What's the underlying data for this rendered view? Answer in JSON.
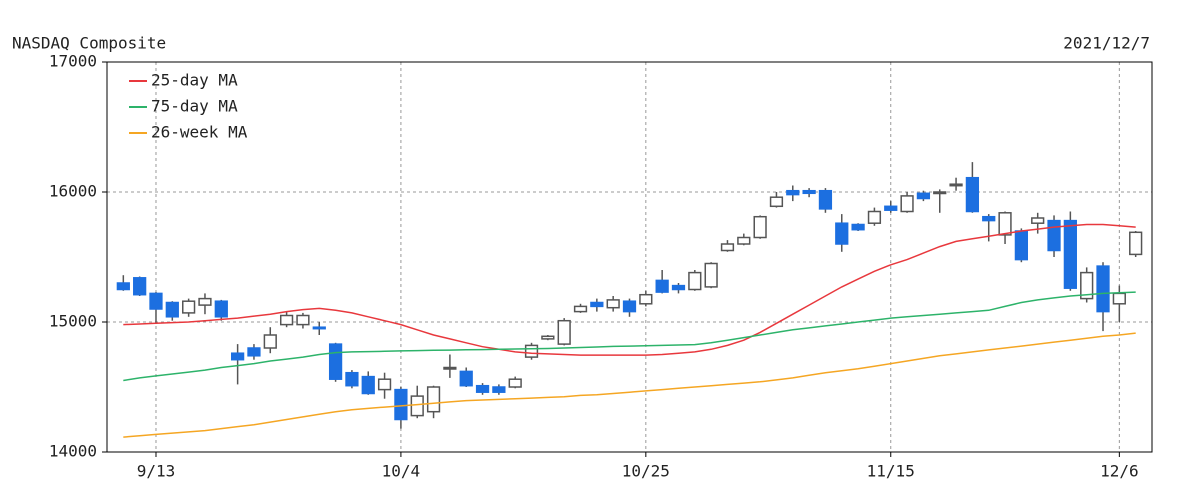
{
  "chart_data": {
    "type": "candlestick",
    "title": "NASDAQ Composite",
    "date": "2021/12/7",
    "categories": [
      null,
      null,
      "9/13",
      null,
      null,
      null,
      null,
      null,
      null,
      null,
      null,
      null,
      null,
      null,
      null,
      null,
      null,
      "10/4",
      null,
      null,
      null,
      null,
      null,
      null,
      null,
      null,
      null,
      null,
      null,
      null,
      null,
      null,
      "10/25",
      null,
      null,
      null,
      null,
      null,
      null,
      null,
      null,
      null,
      null,
      null,
      null,
      null,
      null,
      "11/15",
      null,
      null,
      null,
      null,
      null,
      null,
      null,
      null,
      null,
      null,
      null,
      null,
      null,
      "12/6",
      null
    ],
    "open": [
      15300,
      15340,
      15220,
      15150,
      15070,
      15130,
      15160,
      14760,
      14800,
      14800,
      14980,
      14980,
      14960,
      14830,
      14610,
      14580,
      14480,
      14480,
      14280,
      14310,
      14640,
      14620,
      14510,
      14500,
      14500,
      14730,
      14870,
      14830,
      15080,
      15150,
      15110,
      15160,
      15140,
      15320,
      15280,
      15250,
      15270,
      15550,
      15600,
      15650,
      15890,
      16010,
      16010,
      16010,
      15760,
      15750,
      15760,
      15890,
      15850,
      15990,
      15990,
      16060,
      16110,
      15810,
      15670,
      15700,
      15760,
      15780,
      15780,
      15180,
      15430,
      15140,
      15520
    ],
    "high": [
      15360,
      15350,
      15230,
      15160,
      15180,
      15220,
      15170,
      14830,
      14830,
      14960,
      15080,
      15070,
      15000,
      14840,
      14630,
      14620,
      14610,
      14500,
      14510,
      14510,
      14750,
      14650,
      14530,
      14520,
      14580,
      14840,
      14900,
      15030,
      15140,
      15180,
      15200,
      15180,
      15240,
      15400,
      15300,
      15400,
      15460,
      15630,
      15680,
      15820,
      16000,
      16050,
      16030,
      16030,
      15830,
      15760,
      15880,
      15930,
      16000,
      16010,
      16020,
      16110,
      16230,
      15830,
      15850,
      15720,
      15840,
      15820,
      15850,
      15420,
      15460,
      15280,
      15700
    ],
    "low": [
      15240,
      15200,
      14990,
      15010,
      15040,
      15060,
      15010,
      14520,
      14710,
      14760,
      14960,
      14950,
      14900,
      14540,
      14490,
      14440,
      14410,
      14180,
      14260,
      14260,
      14570,
      14500,
      14440,
      14440,
      14490,
      14710,
      14860,
      14820,
      15070,
      15080,
      15080,
      15040,
      15120,
      15220,
      15220,
      15240,
      15260,
      15540,
      15590,
      15640,
      15880,
      15930,
      15960,
      15840,
      15540,
      15700,
      15740,
      15840,
      15840,
      15930,
      15840,
      16010,
      15840,
      15620,
      15600,
      15460,
      15680,
      15500,
      15240,
      15150,
      14930,
      15000,
      15500
    ],
    "close": [
      15250,
      15210,
      15100,
      15040,
      15160,
      15180,
      15040,
      14710,
      14740,
      14900,
      15050,
      15050,
      14950,
      14560,
      14510,
      14450,
      14560,
      14250,
      14430,
      14500,
      14650,
      14510,
      14460,
      14460,
      14560,
      14820,
      14890,
      15010,
      15120,
      15120,
      15170,
      15080,
      15210,
      15230,
      15250,
      15380,
      15450,
      15600,
      15650,
      15810,
      15960,
      15980,
      15990,
      15870,
      15600,
      15710,
      15850,
      15860,
      15970,
      15950,
      16000,
      16060,
      15850,
      15780,
      15840,
      15480,
      15800,
      15550,
      15260,
      15380,
      15080,
      15220,
      15690
    ],
    "up_color": "#ffffff",
    "down_color": "#1c6fe0",
    "edge_color": "#555555",
    "series": [
      {
        "name": "25-day MA",
        "color": "#e8383d",
        "values": [
          14980,
          14985,
          14990,
          14995,
          15000,
          15010,
          15020,
          15030,
          15045,
          15060,
          15080,
          15095,
          15105,
          15090,
          15070,
          15040,
          15010,
          14980,
          14940,
          14900,
          14870,
          14840,
          14810,
          14790,
          14770,
          14760,
          14755,
          14750,
          14745,
          14745,
          14745,
          14745,
          14745,
          14750,
          14760,
          14770,
          14790,
          14820,
          14860,
          14920,
          14990,
          15060,
          15130,
          15200,
          15270,
          15330,
          15390,
          15440,
          15480,
          15530,
          15580,
          15620,
          15640,
          15660,
          15680,
          15700,
          15715,
          15730,
          15740,
          15750,
          15750,
          15740,
          15730
        ]
      },
      {
        "name": "75-day MA",
        "color": "#2db36a",
        "values": [
          14550,
          14570,
          14585,
          14600,
          14615,
          14630,
          14650,
          14665,
          14680,
          14700,
          14715,
          14730,
          14750,
          14765,
          14770,
          14772,
          14775,
          14778,
          14780,
          14782,
          14784,
          14786,
          14788,
          14790,
          14792,
          14794,
          14796,
          14800,
          14804,
          14808,
          14812,
          14815,
          14818,
          14820,
          14823,
          14826,
          14840,
          14860,
          14880,
          14900,
          14920,
          14940,
          14955,
          14970,
          14985,
          15000,
          15015,
          15030,
          15040,
          15050,
          15060,
          15070,
          15080,
          15090,
          15120,
          15150,
          15170,
          15185,
          15200,
          15210,
          15220,
          15225,
          15230
        ]
      },
      {
        "name": "26-week MA",
        "color": "#f5a623",
        "values": [
          14115,
          14125,
          14135,
          14145,
          14155,
          14165,
          14180,
          14195,
          14210,
          14230,
          14250,
          14270,
          14290,
          14310,
          14325,
          14335,
          14345,
          14355,
          14365,
          14375,
          14385,
          14395,
          14400,
          14405,
          14410,
          14415,
          14420,
          14425,
          14435,
          14440,
          14450,
          14460,
          14470,
          14480,
          14490,
          14500,
          14510,
          14520,
          14530,
          14540,
          14555,
          14570,
          14590,
          14610,
          14625,
          14640,
          14660,
          14680,
          14700,
          14720,
          14740,
          14755,
          14770,
          14785,
          14800,
          14815,
          14830,
          14845,
          14860,
          14875,
          14890,
          14900,
          14915
        ]
      }
    ],
    "ylim": [
      14000,
      17000
    ],
    "yticks": [
      14000,
      15000,
      16000,
      17000
    ],
    "grid": true,
    "legend": "upper left"
  }
}
